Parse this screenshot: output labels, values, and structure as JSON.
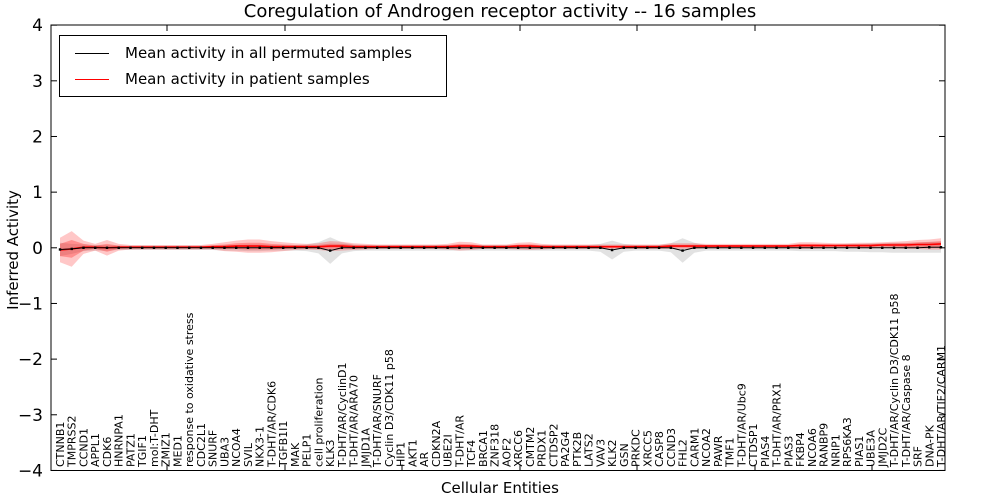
{
  "chart_data": {
    "type": "line",
    "title": "Coregulation of Androgen receptor activity -- 16 samples",
    "xlabel": "Cellular Entities",
    "ylabel": "Inferred Activity",
    "ylim": [
      -4,
      4
    ],
    "yticks": [
      4,
      3,
      2,
      1,
      0,
      -1,
      -2,
      -3,
      -4
    ],
    "yticklabels": [
      "4",
      "3",
      "2",
      "1",
      "0",
      "−1",
      "−2",
      "−3",
      "−4"
    ],
    "grid": false,
    "legend_position": "upper left",
    "categories": [
      "CTNNB1",
      "TMPRSS2",
      "CCND1",
      "APPL1",
      "CDK6",
      "HNRNPA1",
      "PATZ1",
      "TGIF1",
      "mol:T-DHT",
      "ZMIZ1",
      "MED1",
      "response to oxidative stress",
      "CDC2L1",
      "SNURF",
      "UBA3",
      "NCOA4",
      "SVIL",
      "NKX3-1",
      "T-DHT/AR/CDK6",
      "TGFB1I1",
      "MAK",
      "PELP1",
      "cell proliferation",
      "KLK3",
      "T-DHT/AR/CyclinD1",
      "T-DHT/AR/ARA70",
      "JMJD1A",
      "T-DHT/AR/SNURF",
      "Cyclin D3/CDK11 p58",
      "HIP1",
      "AKT1",
      "AR",
      "CDKN2A",
      "UBE2I",
      "T-DHT/AR",
      "TCF4",
      "BRCA1",
      "ZNF318",
      "AOF2",
      "XRCC6",
      "CMTM2",
      "PRDX1",
      "CTDSP2",
      "PA2G4",
      "PTK2B",
      "LATS2",
      "VAV3",
      "KLK2",
      "GSN",
      "PRKDC",
      "XRCC5",
      "CASP8",
      "CCND3",
      "FHL2",
      "CARM1",
      "NCOA2",
      "PAWR",
      "TMF1",
      "T-DHT/AR/Ubc9",
      "CTDSP1",
      "PIAS4",
      "T-DHT/AR/PRX1",
      "PIAS3",
      "FKBP4",
      "NCOA6",
      "RANBP9",
      "NRIP1",
      "RPS6KA3",
      "PIAS1",
      "UBE3A",
      "JMJD2C",
      "T-DHT/AR/Cyclin D3/CDK11 p58",
      "T-DHT/AR/Caspase 8",
      "SRF",
      "DNA-PK",
      "T-DHT/AR/TIF2/CARM1"
    ],
    "series": [
      {
        "name": "Mean activity in all permuted samples",
        "color": "#000000",
        "band_color": "#bfbfbf",
        "values": [
          -0.03,
          -0.02,
          0,
          0,
          0,
          0,
          0,
          0,
          0,
          0,
          0,
          0,
          0,
          0,
          0,
          0,
          0,
          0,
          0,
          0,
          0,
          0,
          0,
          -0.05,
          0,
          0,
          0,
          0,
          0,
          0,
          0,
          0,
          0,
          0,
          0,
          0,
          0,
          0,
          0,
          0,
          0,
          0,
          0,
          0,
          0,
          0,
          0,
          -0.04,
          0,
          0,
          0,
          0,
          0,
          -0.05,
          0,
          0,
          0,
          0,
          0,
          0,
          0,
          0,
          0,
          0,
          0,
          0,
          0,
          0,
          0,
          0,
          0,
          0,
          0,
          0,
          0.01,
          0.01
        ],
        "band": [
          0.12,
          0.09,
          0.06,
          0.05,
          0.05,
          0.04,
          0.04,
          0.04,
          0.04,
          0.04,
          0.04,
          0.04,
          0.04,
          0.04,
          0.05,
          0.05,
          0.06,
          0.06,
          0.05,
          0.05,
          0.05,
          0.06,
          0.1,
          0.24,
          0.1,
          0.06,
          0.05,
          0.05,
          0.05,
          0.05,
          0.05,
          0.05,
          0.05,
          0.05,
          0.05,
          0.05,
          0.05,
          0.05,
          0.05,
          0.05,
          0.05,
          0.05,
          0.05,
          0.05,
          0.05,
          0.05,
          0.07,
          0.17,
          0.07,
          0.05,
          0.05,
          0.05,
          0.08,
          0.22,
          0.09,
          0.05,
          0.05,
          0.05,
          0.05,
          0.05,
          0.05,
          0.05,
          0.05,
          0.06,
          0.06,
          0.06,
          0.06,
          0.07,
          0.07,
          0.08,
          0.08,
          0.09,
          0.09,
          0.09,
          0.1,
          0.1
        ]
      },
      {
        "name": "Mean activity in patient samples",
        "color": "#ff0000",
        "band_color": "#ff0000",
        "values": [
          -0.04,
          -0.02,
          0.01,
          0.01,
          0.0,
          0.01,
          0.01,
          0.01,
          0.01,
          0.01,
          0.01,
          0.01,
          0.01,
          0.02,
          0.02,
          0.03,
          0.03,
          0.03,
          0.02,
          0.02,
          0.02,
          0.02,
          0.02,
          0.03,
          0.03,
          0.02,
          0.02,
          0.02,
          0.02,
          0.02,
          0.02,
          0.02,
          0.02,
          0.02,
          0.03,
          0.03,
          0.02,
          0.02,
          0.02,
          0.03,
          0.03,
          0.02,
          0.02,
          0.02,
          0.02,
          0.02,
          0.02,
          0.02,
          0.02,
          0.02,
          0.02,
          0.02,
          0.03,
          0.03,
          0.03,
          0.03,
          0.03,
          0.03,
          0.03,
          0.03,
          0.03,
          0.03,
          0.03,
          0.04,
          0.04,
          0.04,
          0.04,
          0.04,
          0.04,
          0.04,
          0.05,
          0.05,
          0.05,
          0.06,
          0.06,
          0.07
        ],
        "band": [
          0.22,
          0.32,
          0.12,
          0.06,
          0.14,
          0.06,
          0.04,
          0.04,
          0.04,
          0.04,
          0.04,
          0.04,
          0.04,
          0.05,
          0.08,
          0.1,
          0.12,
          0.12,
          0.1,
          0.08,
          0.06,
          0.05,
          0.06,
          0.09,
          0.08,
          0.06,
          0.05,
          0.04,
          0.04,
          0.04,
          0.04,
          0.04,
          0.04,
          0.05,
          0.08,
          0.07,
          0.04,
          0.04,
          0.04,
          0.06,
          0.07,
          0.05,
          0.04,
          0.04,
          0.04,
          0.04,
          0.04,
          0.04,
          0.04,
          0.04,
          0.04,
          0.04,
          0.05,
          0.05,
          0.05,
          0.04,
          0.04,
          0.04,
          0.04,
          0.04,
          0.04,
          0.04,
          0.04,
          0.06,
          0.06,
          0.05,
          0.04,
          0.04,
          0.05,
          0.05,
          0.05,
          0.06,
          0.07,
          0.08,
          0.09,
          0.1
        ]
      }
    ]
  }
}
